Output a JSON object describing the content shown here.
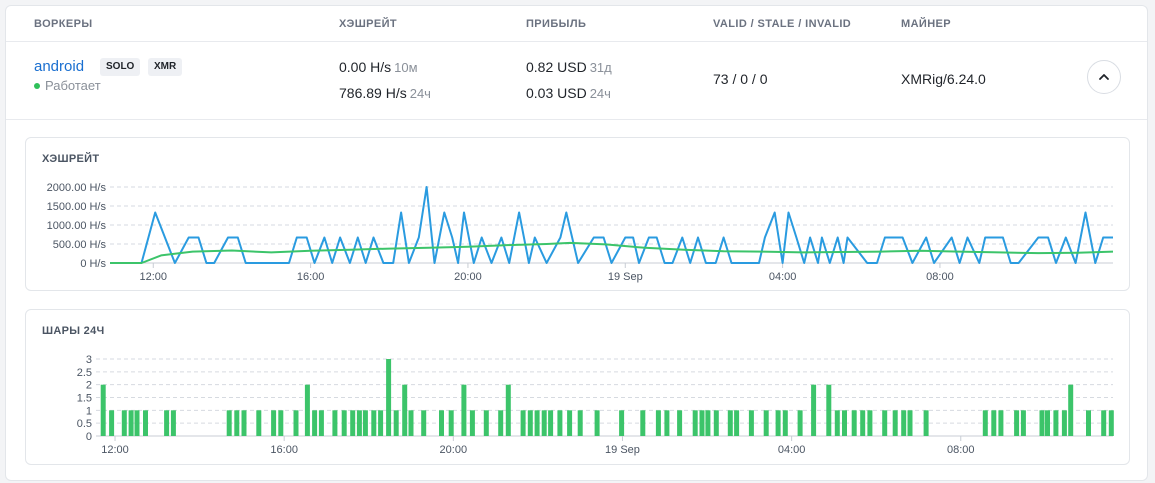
{
  "header": {
    "col_workers": "ВОРКЕРЫ",
    "col_hashrate": "ХЭШРЕЙТ",
    "col_profit": "ПРИБЫЛЬ",
    "col_shares": "VALID / STALE / INVALID",
    "col_miner": "МАЙНЕР"
  },
  "worker": {
    "name": "android",
    "tags": [
      "SOLO",
      "XMR"
    ],
    "status": "Работает",
    "status_color": "#2fc05a",
    "hashrate_1": "0.00 H/s",
    "hashrate_1_period": "10м",
    "hashrate_2": "786.89 H/s",
    "hashrate_2_period": "24ч",
    "profit_1": "0.82 USD",
    "profit_1_period": "31д",
    "profit_2": "0.03 USD",
    "profit_2_period": "24ч",
    "shares": "73 / 0 / 0",
    "miner": "XMRig/6.24.0",
    "collapse_icon": "chevron-up-icon"
  },
  "chart_data": [
    {
      "type": "line",
      "title": "ХЭШРЕЙТ",
      "ylim": [
        0,
        2000
      ],
      "y_ticks": [
        0,
        500,
        1000,
        1500,
        2000
      ],
      "y_tick_labels": [
        "0 H/s",
        "500.00 H/s",
        "1000.00 H/s",
        "1500.00 H/s",
        "2000.00 H/s"
      ],
      "x_ticks": [
        12,
        16,
        20,
        24,
        28,
        32
      ],
      "x_tick_labels": [
        "12:00",
        "16:00",
        "20:00",
        "19 Sep",
        "04:00",
        "08:00"
      ],
      "xlim": [
        10.9,
        36.4
      ],
      "grid": true,
      "series": [
        {
          "color": "#2a9be0",
          "x": [
            10.9,
            11.7,
            12.05,
            12.55,
            12.9,
            13.15,
            13.35,
            13.55,
            13.9,
            14.15,
            14.35,
            14.6,
            15.45,
            15.65,
            15.9,
            16.1,
            16.35,
            16.55,
            16.75,
            17.0,
            17.2,
            17.4,
            17.6,
            17.85,
            18.1,
            18.3,
            18.5,
            18.75,
            18.95,
            19.15,
            19.4,
            19.6,
            19.75,
            19.9,
            20.15,
            20.35,
            20.6,
            20.85,
            21.05,
            21.3,
            21.55,
            21.7,
            22.0,
            22.35,
            22.5,
            22.8,
            23.2,
            23.45,
            23.65,
            24.0,
            24.2,
            24.35,
            24.6,
            24.8,
            25.0,
            25.2,
            25.45,
            25.65,
            25.85,
            26.05,
            26.3,
            26.5,
            26.7,
            27.05,
            27.4,
            27.55,
            27.8,
            28.0,
            28.15,
            28.35,
            28.55,
            28.7,
            28.9,
            29.0,
            29.2,
            29.4,
            29.55,
            29.65,
            30.15,
            30.4,
            30.6,
            30.9,
            31.05,
            31.3,
            31.65,
            31.85,
            32.3,
            32.5,
            32.7,
            33.0,
            33.15,
            33.4,
            33.6,
            33.8,
            34.0,
            34.5,
            34.75,
            34.95,
            35.2,
            35.45,
            35.7,
            35.95,
            36.15,
            36.4
          ],
          "y": [
            0,
            0,
            1330,
            0,
            670,
            670,
            0,
            0,
            670,
            670,
            0,
            0,
            0,
            670,
            670,
            0,
            670,
            0,
            670,
            0,
            670,
            0,
            670,
            0,
            0,
            1330,
            0,
            670,
            2000,
            0,
            1330,
            670,
            0,
            1330,
            0,
            670,
            0,
            670,
            0,
            1330,
            0,
            670,
            0,
            670,
            1330,
            0,
            670,
            670,
            0,
            670,
            670,
            0,
            670,
            670,
            0,
            0,
            670,
            0,
            670,
            0,
            0,
            670,
            0,
            0,
            0,
            670,
            1330,
            0,
            1330,
            670,
            0,
            670,
            0,
            670,
            0,
            670,
            0,
            670,
            0,
            0,
            670,
            670,
            670,
            0,
            670,
            0,
            670,
            0,
            670,
            0,
            670,
            670,
            670,
            0,
            0,
            670,
            670,
            0,
            670,
            0,
            1330,
            0,
            670,
            670
          ]
        },
        {
          "color": "#3cc46a",
          "x": [
            10.9,
            11.7,
            12.2,
            13.0,
            14.0,
            15.0,
            16.0,
            17.0,
            18.0,
            19.0,
            20.0,
            21.0,
            22.0,
            22.6,
            23.5,
            24.5,
            25.5,
            26.5,
            27.5,
            28.5,
            29.5,
            30.5,
            31.5,
            32.5,
            33.5,
            34.5,
            35.5,
            36.4
          ],
          "y": [
            0,
            0,
            200,
            300,
            330,
            280,
            320,
            350,
            380,
            400,
            430,
            470,
            500,
            530,
            490,
            400,
            350,
            310,
            300,
            280,
            290,
            300,
            320,
            300,
            280,
            260,
            270,
            300
          ]
        }
      ]
    },
    {
      "type": "bar",
      "title": "ШАРЫ 24Ч",
      "ylim": [
        0,
        3
      ],
      "y_ticks": [
        0,
        0.5,
        1,
        1.5,
        2,
        2.5,
        3
      ],
      "y_tick_labels": [
        "0",
        "0.5",
        "1",
        "1.5",
        "2",
        "2.5",
        "3"
      ],
      "x_ticks": [
        12,
        16,
        20,
        24,
        28,
        32
      ],
      "x_tick_labels": [
        "12:00",
        "16:00",
        "20:00",
        "19 Sep",
        "04:00",
        "08:00"
      ],
      "xlim": [
        11.55,
        35.6
      ],
      "grid": true,
      "color": "#3cc46a",
      "x": [
        11.72,
        11.92,
        12.22,
        12.38,
        12.52,
        12.72,
        13.22,
        13.38,
        14.7,
        14.88,
        15.05,
        15.4,
        15.75,
        15.92,
        16.28,
        16.55,
        16.72,
        16.88,
        17.2,
        17.42,
        17.62,
        17.78,
        17.92,
        18.12,
        18.28,
        18.47,
        18.65,
        18.85,
        19.0,
        19.3,
        19.72,
        19.95,
        20.25,
        20.45,
        20.78,
        21.12,
        21.3,
        21.65,
        21.82,
        21.98,
        22.15,
        22.3,
        22.52,
        22.75,
        23.0,
        23.4,
        23.98,
        24.48,
        24.85,
        25.05,
        25.35,
        25.72,
        25.88,
        26.02,
        26.22,
        26.55,
        26.7,
        27.05,
        27.4,
        27.68,
        27.85,
        28.2,
        28.52,
        28.88,
        29.08,
        29.25,
        29.48,
        29.68,
        29.85,
        30.2,
        30.45,
        30.65,
        30.8,
        31.18,
        32.58,
        32.78,
        32.95,
        33.32,
        33.48,
        33.92,
        34.05,
        34.25,
        34.45,
        34.6,
        35.02,
        35.38,
        35.56
      ],
      "values": [
        2,
        1,
        1,
        1,
        1,
        1,
        1,
        1,
        1,
        1,
        1,
        1,
        1,
        1,
        1,
        2,
        1,
        1,
        1,
        1,
        1,
        1,
        1,
        1,
        1,
        3,
        1,
        2,
        1,
        1,
        1,
        1,
        2,
        1,
        1,
        1,
        2,
        1,
        1,
        1,
        1,
        1,
        1,
        1,
        1,
        1,
        1,
        1,
        1,
        1,
        1,
        1,
        1,
        1,
        1,
        1,
        1,
        1,
        1,
        1,
        1,
        1,
        2,
        2,
        1,
        1,
        1,
        1,
        1,
        1,
        1,
        1,
        1,
        1,
        1,
        1,
        1,
        1,
        1,
        1,
        1,
        1,
        1,
        2,
        1,
        1,
        1
      ]
    }
  ]
}
